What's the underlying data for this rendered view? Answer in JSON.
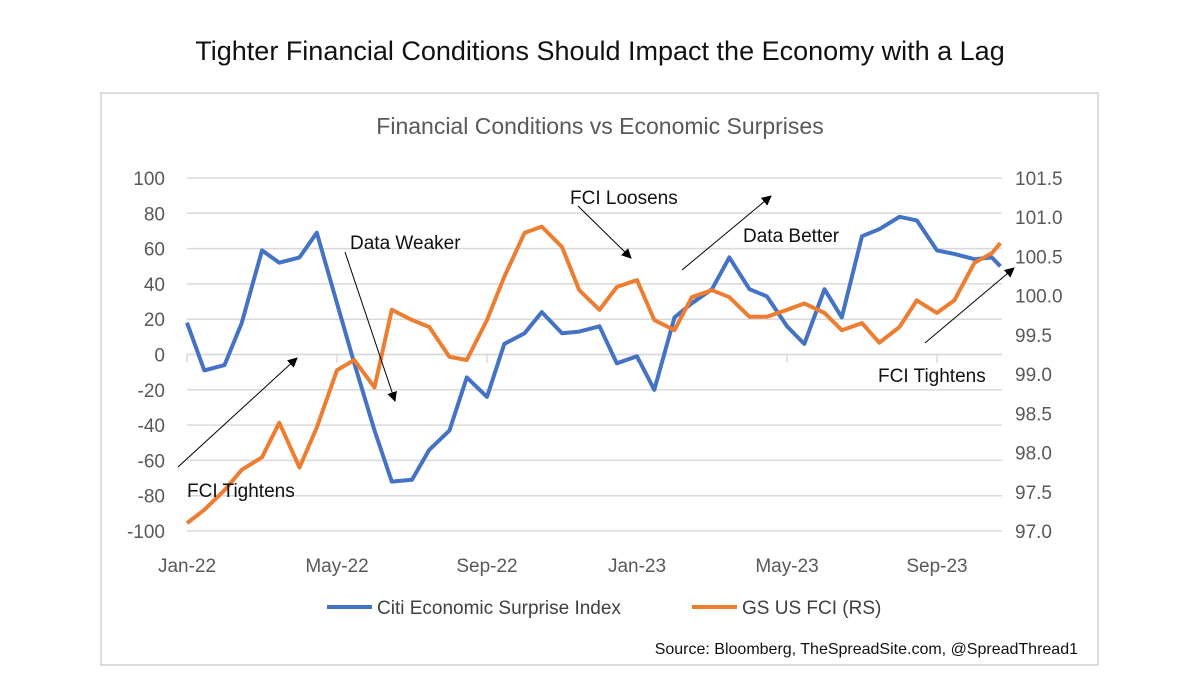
{
  "page_title": "Tighter Financial Conditions Should Impact the Economy with a Lag",
  "source": "Source: Bloomberg, TheSpreadSite.com, @SpreadThread1",
  "chart_data": {
    "type": "line",
    "title": "Financial Conditions vs Economic Surprises",
    "xlabel": "",
    "ylabel": "",
    "grid": true,
    "legend_position": "bottom",
    "x_ticks": [
      "Jan-22",
      "May-22",
      "Sep-22",
      "Jan-23",
      "May-23",
      "Sep-23"
    ],
    "y_left": {
      "ticks": [
        "100",
        "80",
        "60",
        "40",
        "20",
        "0",
        "-20",
        "-40",
        "-60",
        "-80",
        "-100"
      ],
      "ylim": [
        -100,
        100
      ]
    },
    "y_right": {
      "ticks": [
        "101.5",
        "101.0",
        "100.5",
        "100.0",
        "99.5",
        "99.0",
        "98.5",
        "98.0",
        "97.5",
        "97.0"
      ],
      "ylim": [
        97.0,
        101.5
      ]
    },
    "x": [
      "2022-01-01",
      "2022-01-15",
      "2022-02-01",
      "2022-02-15",
      "2022-03-01",
      "2022-03-15",
      "2022-04-01",
      "2022-04-15",
      "2022-05-01",
      "2022-05-15",
      "2022-06-01",
      "2022-06-15",
      "2022-07-01",
      "2022-07-15",
      "2022-08-01",
      "2022-08-15",
      "2022-09-01",
      "2022-09-15",
      "2022-10-01",
      "2022-10-15",
      "2022-11-01",
      "2022-11-15",
      "2022-12-01",
      "2022-12-15",
      "2023-01-01",
      "2023-01-15",
      "2023-02-01",
      "2023-02-15",
      "2023-03-01",
      "2023-03-15",
      "2023-04-01",
      "2023-04-15",
      "2023-05-01",
      "2023-05-15",
      "2023-06-01",
      "2023-06-15",
      "2023-07-01",
      "2023-07-15",
      "2023-08-01",
      "2023-08-15",
      "2023-09-01",
      "2023-09-15",
      "2023-10-01",
      "2023-10-15",
      "2023-10-22"
    ],
    "series": [
      {
        "name": "Citi Economic Surprise Index",
        "axis": "left",
        "color": "#4472C4",
        "values": [
          18,
          -9,
          -6,
          18,
          59,
          52,
          55,
          69,
          29,
          -5,
          -43,
          -72,
          -71,
          -54,
          -43,
          -13,
          -24,
          6,
          12,
          24,
          12,
          13,
          16,
          -5,
          -1,
          -20,
          21,
          29,
          37,
          55,
          37,
          33,
          16,
          6,
          37,
          21,
          67,
          71,
          78,
          76,
          59,
          57,
          54,
          55,
          50
        ]
      },
      {
        "name": "GS US FCI (RS)",
        "axis": "right",
        "color": "#ED7D31",
        "values": [
          97.1,
          97.27,
          97.52,
          97.78,
          97.94,
          98.38,
          97.81,
          98.32,
          99.05,
          99.18,
          98.83,
          99.82,
          99.69,
          99.6,
          99.22,
          99.18,
          99.69,
          100.24,
          100.8,
          100.88,
          100.62,
          100.07,
          99.82,
          100.11,
          100.2,
          99.69,
          99.56,
          99.98,
          100.07,
          99.98,
          99.73,
          99.73,
          99.82,
          99.9,
          99.78,
          99.56,
          99.65,
          99.4,
          99.6,
          99.94,
          99.78,
          99.94,
          100.42,
          100.54,
          100.67
        ]
      }
    ],
    "annotations": [
      "FCI Tightens",
      "Data Weaker",
      "FCI Loosens",
      "Data Better",
      "FCI Tightens"
    ]
  }
}
